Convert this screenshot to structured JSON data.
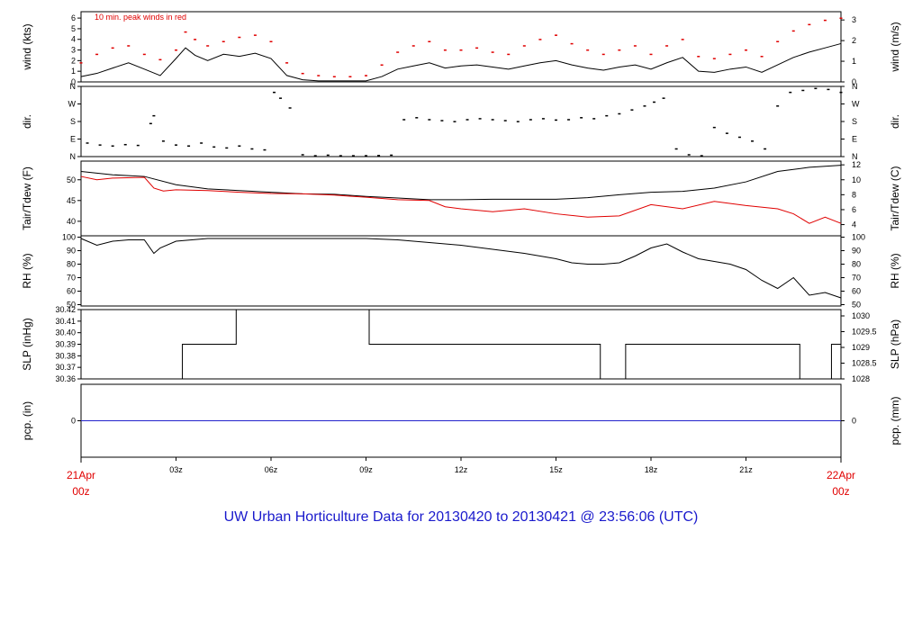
{
  "title": "UW Urban Horticulture Data for 20130420  to  20130421 @ 23:56:06  (UTC)",
  "note": "10 min. peak winds in red",
  "colors": {
    "primary": "#000000",
    "secondary": "#e00000",
    "precip": "#2222cc",
    "title": "#1a1acc"
  },
  "x_axis": {
    "unit": "hours UTC",
    "range": [
      0,
      24
    ],
    "ticks": [
      {
        "x": 3,
        "label": "03z"
      },
      {
        "x": 6,
        "label": "06z"
      },
      {
        "x": 9,
        "label": "09z"
      },
      {
        "x": 12,
        "label": "12z"
      },
      {
        "x": 15,
        "label": "15z"
      },
      {
        "x": 18,
        "label": "18z"
      },
      {
        "x": 21,
        "label": "21z"
      }
    ],
    "start_label": [
      "21Apr",
      "00z"
    ],
    "end_label": [
      "22Apr",
      "00z"
    ]
  },
  "chart_data": [
    {
      "type": "line",
      "ylabel": "wind (kts)",
      "ylabel_right": "wind (m/s)",
      "ylim": [
        0,
        6.6
      ],
      "yticks": [
        0,
        1,
        2,
        3,
        4,
        5,
        6
      ],
      "right_ylim": [
        0,
        3.4
      ],
      "right_yticks": [
        0,
        1,
        2,
        3
      ],
      "series": [
        {
          "name": "wind speed",
          "color": "#000000",
          "style": "line",
          "x": [
            0,
            0.5,
            1,
            1.5,
            2,
            2.5,
            3,
            3.3,
            3.6,
            4,
            4.5,
            5,
            5.5,
            6,
            6.5,
            7,
            7.5,
            8,
            8.5,
            9,
            9.5,
            10,
            10.5,
            11,
            11.5,
            12,
            12.5,
            13,
            13.5,
            14,
            14.5,
            15,
            15.5,
            16,
            16.5,
            17,
            17.5,
            18,
            18.5,
            19,
            19.5,
            20,
            20.5,
            21,
            21.5,
            22,
            22.5,
            23,
            23.5,
            24
          ],
          "y": [
            0.5,
            0.8,
            1.3,
            1.8,
            1.2,
            0.6,
            2.2,
            3.2,
            2.5,
            2,
            2.6,
            2.4,
            2.7,
            2.2,
            0.6,
            0.2,
            0.1,
            0.1,
            0.1,
            0.1,
            0.5,
            1.2,
            1.5,
            1.8,
            1.3,
            1.5,
            1.6,
            1.4,
            1.2,
            1.5,
            1.8,
            2,
            1.6,
            1.3,
            1.1,
            1.4,
            1.6,
            1.2,
            1.8,
            2.3,
            1,
            0.9,
            1.2,
            1.4,
            0.9,
            1.6,
            2.3,
            2.8,
            3.2,
            3.6
          ]
        },
        {
          "name": "10 min. peak winds",
          "color": "#e00000",
          "style": "dots",
          "x": [
            0,
            0.5,
            1,
            1.5,
            2,
            2.5,
            3,
            3.3,
            3.6,
            4,
            4.5,
            5,
            5.5,
            6,
            6.5,
            7,
            7.5,
            8,
            8.5,
            9,
            9.5,
            10,
            10.5,
            11,
            11.5,
            12,
            12.5,
            13,
            13.5,
            14,
            14.5,
            15,
            15.5,
            16,
            16.5,
            17,
            17.5,
            18,
            18.5,
            19,
            19.5,
            20,
            20.5,
            21,
            21.5,
            22,
            22.5,
            23,
            23.5,
            24
          ],
          "y": [
            1.8,
            2.6,
            3.2,
            3.4,
            2.6,
            2.1,
            3,
            4.7,
            4,
            3.4,
            3.8,
            4.2,
            4.4,
            3.8,
            1.8,
            0.8,
            0.6,
            0.5,
            0.5,
            0.6,
            1.6,
            2.8,
            3.4,
            3.8,
            3,
            3,
            3.2,
            2.8,
            2.6,
            3.4,
            4,
            4.4,
            3.6,
            3,
            2.6,
            3,
            3.4,
            2.6,
            3.4,
            4,
            2.4,
            2.2,
            2.6,
            3,
            2.4,
            3.8,
            4.8,
            5.4,
            5.8,
            6
          ]
        }
      ]
    },
    {
      "type": "scatter",
      "ylabel": "dir.",
      "ylabel_right": "dir.",
      "ylim": [
        0,
        360
      ],
      "yticks": [
        0,
        90,
        180,
        270,
        360
      ],
      "ytick_labels": [
        "N",
        "E",
        "S",
        "W",
        "N"
      ],
      "series": [
        {
          "name": "wind direction",
          "color": "#000000",
          "x": [
            0.2,
            0.6,
            1,
            1.4,
            1.8,
            2.2,
            2.3,
            2.6,
            3,
            3.4,
            3.8,
            4.2,
            4.6,
            5,
            5.4,
            5.8,
            6.1,
            6.3,
            6.6,
            7,
            7.4,
            7.8,
            8.2,
            8.6,
            9,
            9.4,
            9.8,
            10.2,
            10.6,
            11,
            11.4,
            11.8,
            12.2,
            12.6,
            13,
            13.4,
            13.8,
            14.2,
            14.6,
            15,
            15.4,
            15.8,
            16.2,
            16.6,
            17,
            17.4,
            17.8,
            18.1,
            18.4,
            18.8,
            19.2,
            19.6,
            20,
            20.4,
            20.8,
            21.2,
            21.6,
            22,
            22.4,
            22.8,
            23.2,
            23.6,
            24
          ],
          "y": [
            70,
            60,
            55,
            62,
            58,
            170,
            210,
            80,
            60,
            55,
            70,
            50,
            45,
            55,
            40,
            35,
            330,
            300,
            250,
            10,
            5,
            8,
            5,
            5,
            5,
            6,
            8,
            190,
            200,
            190,
            185,
            180,
            190,
            195,
            190,
            185,
            180,
            190,
            195,
            188,
            190,
            200,
            195,
            210,
            220,
            240,
            260,
            280,
            300,
            40,
            10,
            5,
            150,
            120,
            100,
            80,
            40,
            260,
            330,
            340,
            350,
            345,
            330
          ]
        }
      ]
    },
    {
      "type": "line",
      "ylabel": "Tair/Tdew (F)",
      "ylabel_right": "Tair/Tdew (C)",
      "ylim": [
        36.5,
        54.5
      ],
      "yticks": [
        40,
        45,
        50
      ],
      "right_ylim": [
        2.5,
        12.5
      ],
      "right_yticks": [
        2,
        4,
        6,
        8,
        10,
        12
      ],
      "series": [
        {
          "name": "Tair",
          "color": "#000000",
          "x": [
            0,
            1,
            2,
            3,
            4,
            5,
            6,
            7,
            8,
            9,
            10,
            11,
            12,
            13,
            14,
            15,
            16,
            17,
            18,
            19,
            20,
            21,
            22,
            23,
            24
          ],
          "y": [
            52,
            51.2,
            50.8,
            48.8,
            47.8,
            47.4,
            47,
            46.6,
            46.5,
            46,
            45.6,
            45.2,
            45.2,
            45.3,
            45.3,
            45.3,
            45.7,
            46.4,
            47,
            47.2,
            48,
            49.5,
            52,
            53,
            53.5
          ]
        },
        {
          "name": "Tdew",
          "color": "#e00000",
          "x": [
            0,
            0.5,
            1,
            2,
            2.3,
            2.6,
            3,
            4,
            5,
            6,
            7,
            8,
            9,
            10,
            11,
            11.5,
            12,
            13,
            14,
            15,
            16,
            17,
            18,
            19,
            20,
            21,
            22,
            22.5,
            23,
            23.5,
            24
          ],
          "y": [
            50.8,
            50,
            50.4,
            50.6,
            48,
            47.3,
            47.6,
            47.4,
            47,
            46.7,
            46.6,
            46.3,
            45.8,
            45.2,
            45,
            43.5,
            43,
            42.3,
            43,
            41.8,
            41,
            41.3,
            44,
            43,
            44.8,
            43.8,
            43,
            41.8,
            39.5,
            41,
            39.5
          ]
        }
      ]
    },
    {
      "type": "line",
      "ylabel": "RH (%)",
      "ylabel_right": "RH (%)",
      "ylim": [
        49,
        101
      ],
      "yticks": [
        50,
        60,
        70,
        80,
        90,
        100
      ],
      "right_yticks": [
        50,
        60,
        70,
        80,
        90,
        100
      ],
      "series": [
        {
          "name": "RH",
          "color": "#000000",
          "x": [
            0,
            0.5,
            1,
            1.5,
            2,
            2.3,
            2.5,
            3,
            4,
            5,
            6,
            7,
            8,
            9,
            10,
            11,
            12,
            13,
            14,
            15,
            15.5,
            16,
            16.5,
            17,
            17.5,
            18,
            18.5,
            19,
            19.5,
            20,
            20.5,
            21,
            21.5,
            22,
            22.5,
            23,
            23.5,
            24
          ],
          "y": [
            99,
            94,
            97,
            98,
            98,
            88,
            92,
            97,
            99,
            99,
            99,
            99,
            99,
            99,
            98,
            96,
            94,
            91,
            88,
            84,
            81,
            80,
            80,
            81,
            86,
            92,
            95,
            89,
            84,
            82,
            80,
            76,
            68,
            62,
            70,
            57,
            59,
            55
          ]
        }
      ]
    },
    {
      "type": "line",
      "ylabel": "SLP (inHg)",
      "ylabel_right": "SLP (hPa)",
      "ylim": [
        30.36,
        30.42
      ],
      "yticks": [
        30.36,
        30.37,
        30.38,
        30.39,
        30.4,
        30.41,
        30.42
      ],
      "right_ylim": [
        1028,
        1030.2
      ],
      "right_yticks": [
        1028,
        1028.5,
        1029,
        1029.5,
        1030
      ],
      "series": [
        {
          "name": "SLP",
          "color": "#000000",
          "step": true,
          "x": [
            0,
            3.2,
            4.9,
            9.1,
            16.4,
            17.2,
            22.7,
            23.7,
            24
          ],
          "y": [
            30.36,
            30.39,
            30.42,
            30.39,
            30.36,
            30.39,
            30.36,
            30.39,
            30.39
          ]
        }
      ]
    },
    {
      "type": "line",
      "ylabel": "pcp. (in)",
      "ylabel_right": "pcp. (mm)",
      "ylim": [
        -1,
        1
      ],
      "yticks": [
        0
      ],
      "right_yticks": [
        0
      ],
      "series": [
        {
          "name": "precipitation",
          "color": "#2222cc",
          "x": [
            0,
            24
          ],
          "y": [
            0,
            0
          ]
        }
      ]
    }
  ]
}
